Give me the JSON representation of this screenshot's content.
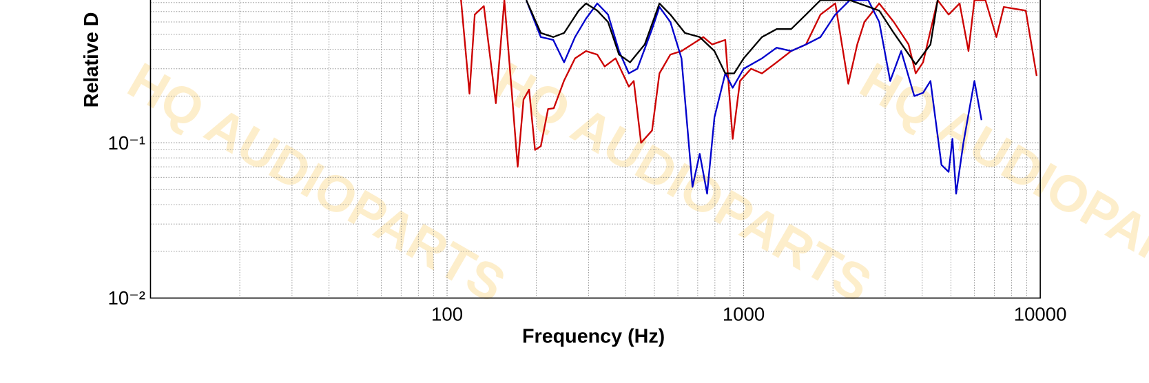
{
  "chart_data": {
    "type": "line",
    "x_label": "Frequency (Hz)",
    "y_label": "Relative D",
    "xlog": true,
    "ylog": true,
    "grid": true,
    "watermark": "HQ AUDIOPARTS",
    "xlim": [
      10,
      10000
    ],
    "xticks": [
      100,
      1000,
      10000
    ],
    "ylim": [
      0.01,
      1
    ],
    "yticks": [
      {
        "value": 0.01,
        "label": "10⁻²"
      },
      {
        "value": 0.1,
        "label": "10⁻¹"
      }
    ],
    "series": [
      {
        "color": "#cc0000",
        "x": [
          111,
          119,
          124,
          133,
          146,
          156,
          165,
          173,
          181,
          189,
          198,
          207,
          219,
          229,
          248,
          270,
          294,
          321,
          340,
          370,
          410,
          426,
          451,
          491,
          520,
          566,
          617,
          731,
          783,
          867,
          918,
          972,
          1059,
          1153,
          1292,
          1446,
          1622,
          1816,
          2037,
          2254,
          2415,
          2553,
          2864,
          3207,
          3597,
          3802,
          4027,
          4508,
          4909,
          5346,
          5728,
          5998,
          6531,
          7112,
          7534,
          8933,
          9727
        ],
        "values": [
          0.9,
          0.207,
          0.67,
          0.76,
          0.18,
          0.83,
          0.22,
          0.07,
          0.19,
          0.22,
          0.09,
          0.095,
          0.165,
          0.167,
          0.252,
          0.35,
          0.39,
          0.37,
          0.31,
          0.35,
          0.23,
          0.25,
          0.1,
          0.12,
          0.28,
          0.37,
          0.39,
          0.48,
          0.43,
          0.46,
          0.106,
          0.25,
          0.3,
          0.28,
          0.33,
          0.39,
          0.43,
          0.67,
          0.79,
          0.24,
          0.43,
          0.6,
          0.79,
          0.6,
          0.43,
          0.28,
          0.33,
          0.83,
          0.67,
          0.79,
          0.39,
          0.83,
          0.83,
          0.48,
          0.75,
          0.71,
          0.27
        ]
      },
      {
        "color": "#0000cc",
        "x": [
          185,
          207,
          228,
          248,
          270,
          294,
          321,
          349,
          380,
          410,
          438,
          491,
          520,
          566,
          617,
          672,
          711,
          753,
          797,
          867,
          918,
          1000,
          1153,
          1292,
          1446,
          1622,
          1816,
          2037,
          2280,
          2630,
          2864,
          3120,
          3397,
          3760,
          4027,
          4265,
          4645,
          4909,
          5058,
          5204,
          5508,
          5998,
          6339
        ],
        "values": [
          0.83,
          0.48,
          0.46,
          0.33,
          0.48,
          0.63,
          0.79,
          0.67,
          0.39,
          0.28,
          0.3,
          0.54,
          0.75,
          0.6,
          0.35,
          0.052,
          0.085,
          0.047,
          0.146,
          0.28,
          0.226,
          0.3,
          0.35,
          0.41,
          0.39,
          0.43,
          0.48,
          0.67,
          0.83,
          0.83,
          0.6,
          0.25,
          0.39,
          0.2,
          0.21,
          0.25,
          0.072,
          0.065,
          0.106,
          0.047,
          0.1,
          0.25,
          0.14
        ]
      },
      {
        "color": "#000000",
        "x": [
          185,
          207,
          228,
          248,
          278,
          294,
          321,
          349,
          380,
          414,
          464,
          520,
          566,
          634,
          711,
          797,
          867,
          929,
          1000,
          1153,
          1292,
          1446,
          1622,
          1816,
          2280,
          2864,
          3207,
          3802,
          4265,
          4508
        ],
        "values": [
          0.83,
          0.51,
          0.48,
          0.51,
          0.71,
          0.79,
          0.71,
          0.6,
          0.37,
          0.33,
          0.43,
          0.79,
          0.67,
          0.51,
          0.48,
          0.39,
          0.28,
          0.28,
          0.35,
          0.48,
          0.54,
          0.54,
          0.67,
          0.83,
          0.83,
          0.71,
          0.51,
          0.32,
          0.43,
          0.83
        ]
      }
    ]
  }
}
